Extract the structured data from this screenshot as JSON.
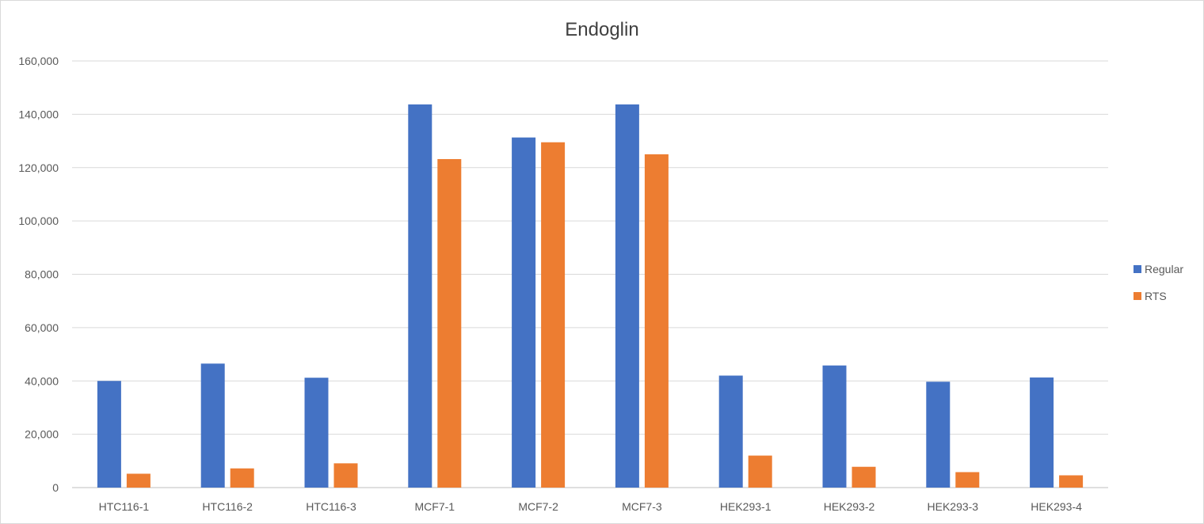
{
  "chart_data": {
    "type": "bar",
    "title": "Endoglin",
    "xlabel": "",
    "ylabel": "",
    "ylim": [
      0,
      160000
    ],
    "yticks": [
      "0",
      "20,000",
      "40,000",
      "60,000",
      "80,000",
      "100,000",
      "120,000",
      "140,000",
      "160,000"
    ],
    "grid": true,
    "legend_position": "right",
    "categories": [
      "HTC116-1",
      "HTC116-2",
      "HTC116-3",
      "MCF7-1",
      "MCF7-2",
      "MCF7-3",
      "HEK293-1",
      "HEK293-2",
      "HEK293-3",
      "HEK293-4"
    ],
    "series": [
      {
        "name": "Regular",
        "color": "#4472c4",
        "values": [
          40000,
          46500,
          41200,
          143700,
          131300,
          143700,
          42000,
          45800,
          39700,
          41300
        ]
      },
      {
        "name": "RTS",
        "color": "#ed7d31",
        "values": [
          5200,
          7200,
          9100,
          123200,
          129500,
          125000,
          12000,
          7800,
          5800,
          4600
        ]
      }
    ]
  }
}
